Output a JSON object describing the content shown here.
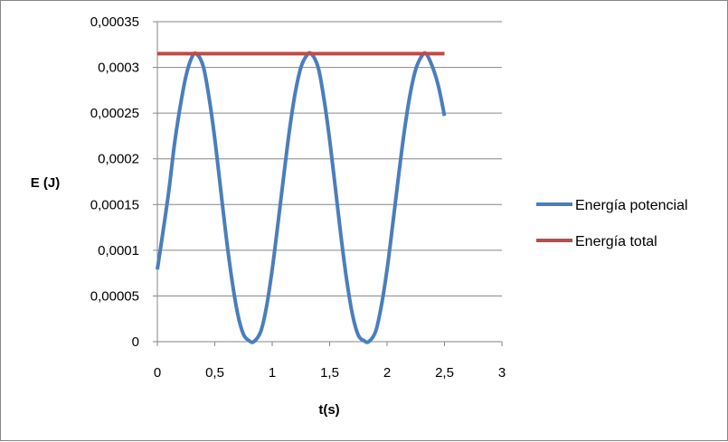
{
  "chart_data": {
    "type": "line",
    "xlabel": "t(s)",
    "ylabel": "E (J)",
    "xlim": [
      0,
      3
    ],
    "ylim": [
      0,
      0.00035
    ],
    "x_ticks": [
      0,
      0.5,
      1,
      1.5,
      2,
      2.5,
      3
    ],
    "x_tick_labels": [
      "0",
      "0,5",
      "1",
      "1,5",
      "2",
      "2,5",
      "3"
    ],
    "y_ticks": [
      0,
      5e-05,
      0.0001,
      0.00015,
      0.0002,
      0.00025,
      0.0003,
      0.00035
    ],
    "y_tick_labels": [
      "0",
      "0,00005",
      "0,0001",
      "0,00015",
      "0,0002",
      "0,00025",
      "0,0003",
      "0,00035"
    ],
    "grid": "horizontal",
    "legend_position": "right",
    "series": [
      {
        "name": "Energía potencial",
        "color": "#4a7ebb",
        "x": [
          0,
          0.05,
          0.1,
          0.15,
          0.2,
          0.25,
          0.3,
          0.34,
          0.4,
          0.45,
          0.5,
          0.55,
          0.6,
          0.65,
          0.7,
          0.75,
          0.8,
          0.84,
          0.9,
          0.95,
          1.0,
          1.05,
          1.1,
          1.15,
          1.2,
          1.25,
          1.3,
          1.34,
          1.4,
          1.45,
          1.5,
          1.55,
          1.6,
          1.65,
          1.7,
          1.75,
          1.8,
          1.84,
          1.9,
          1.95,
          2.0,
          2.05,
          2.1,
          2.15,
          2.2,
          2.25,
          2.3,
          2.34,
          2.4,
          2.45,
          2.5
        ],
        "y": [
          7.9e-05,
          0.000121,
          0.000165,
          0.000217,
          0.000258,
          0.000291,
          0.000311,
          0.000315,
          0.000301,
          0.000267,
          0.000222,
          0.000168,
          0.000114,
          6.7e-05,
          3e-05,
          8e-06,
          1e-06,
          0.0,
          1.1e-05,
          3.8e-05,
          7.9e-05,
          0.000129,
          0.000181,
          0.000231,
          0.000272,
          0.0003,
          0.000313,
          0.000315,
          0.0003,
          0.000266,
          0.000221,
          0.000168,
          0.000114,
          6.6e-05,
          2.9e-05,
          7e-06,
          1e-06,
          0.0,
          1.1e-05,
          3.9e-05,
          7.9e-05,
          0.000129,
          0.000181,
          0.00023,
          0.00027,
          0.000298,
          0.000312,
          0.000315,
          0.000299,
          0.000278,
          0.000247
        ]
      },
      {
        "name": "Energía total",
        "color": "#be4b48",
        "x": [
          0,
          2.5
        ],
        "y": [
          0.000315,
          0.000315
        ]
      }
    ]
  }
}
